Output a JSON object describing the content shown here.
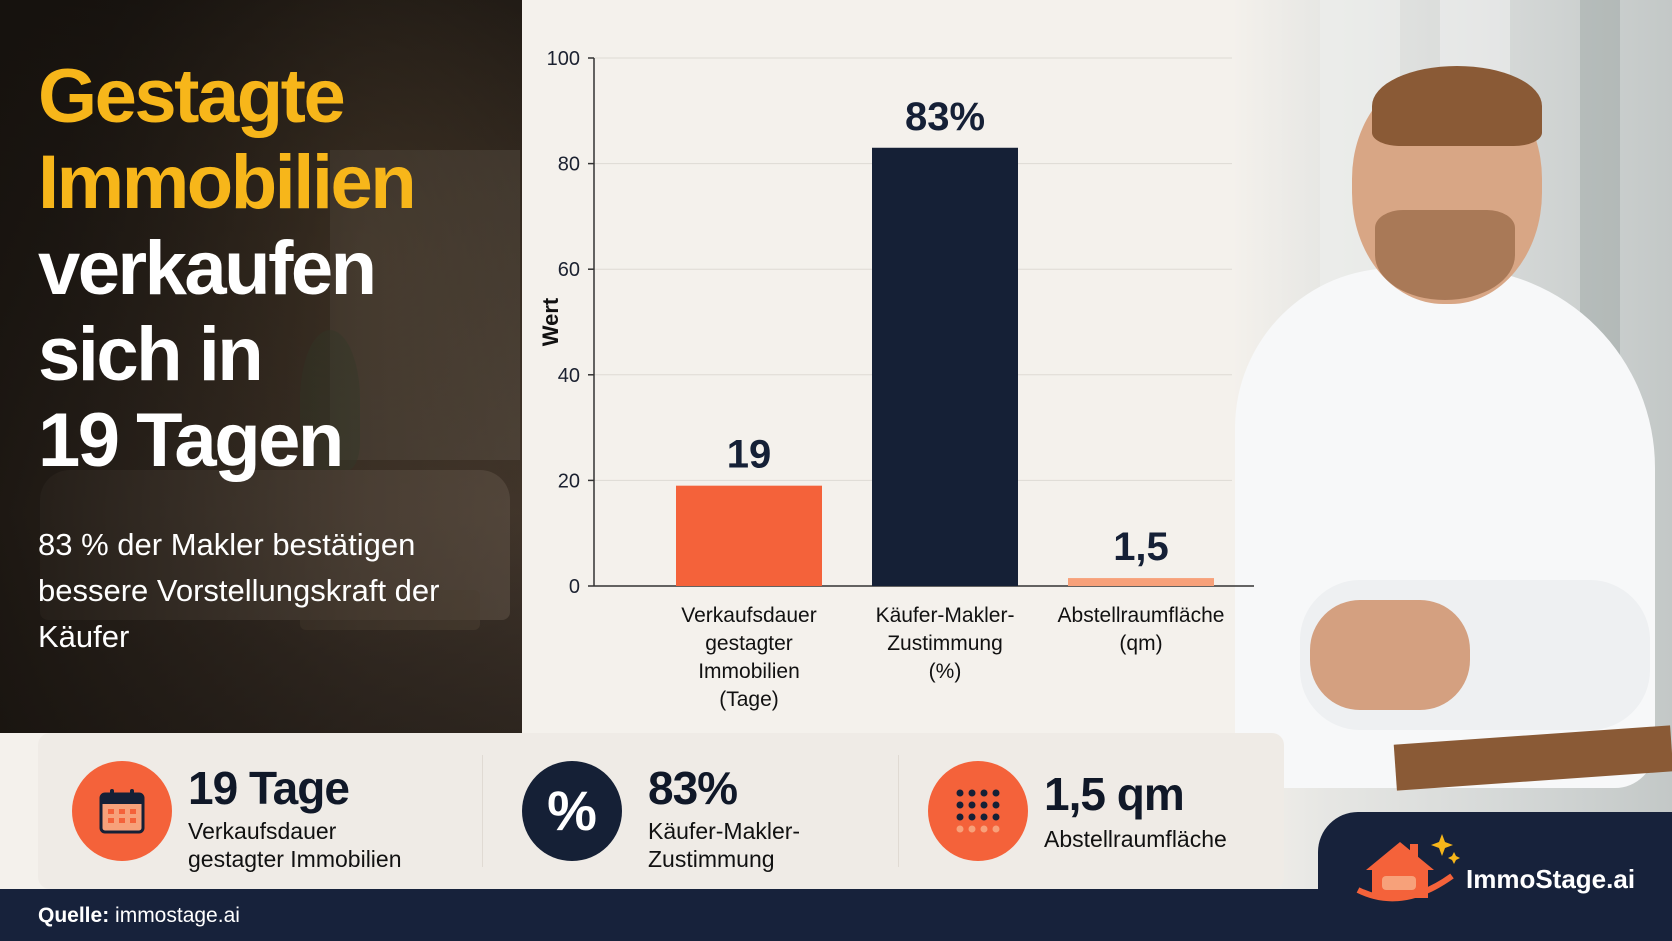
{
  "headline": {
    "line1": "Gestagte",
    "line2": "Immobilien",
    "line3": "verkaufen",
    "line4": "sich in",
    "line5": "19 Tagen"
  },
  "subheadline": "83 % der Makler bestätigen bessere Vorstellungskraft der Käufer",
  "colors": {
    "accent_yellow": "#f7b61a",
    "coral": "#f4623a",
    "navy": "#152036",
    "peach": "#f7a17a"
  },
  "chart_data": {
    "type": "bar",
    "categories": [
      "Verkaufsdauer\ngestagter\nImmobilien\n(Tage)",
      "Käufer-Makler-\nZustimmung\n(%)",
      "Abstellraumfläche\n(qm)"
    ],
    "values": [
      19,
      83,
      1.5
    ],
    "data_labels": [
      "19",
      "83%",
      "1,5"
    ],
    "bar_colors": [
      "#f4623a",
      "#152036",
      "#f7a17a"
    ],
    "ylabel": "Wert",
    "xlabel": "",
    "ylim": [
      0,
      100
    ],
    "yticks": [
      0,
      20,
      40,
      60,
      80,
      100
    ],
    "grid": true
  },
  "stats": [
    {
      "value": "19 Tage",
      "desc": "Verkaufsdauer\ngestagter Immobilien",
      "icon": "calendar-icon"
    },
    {
      "value": "83%",
      "desc": "Käufer-Makler-\nZustimmung",
      "icon": "percent-icon",
      "glyph": "%"
    },
    {
      "value": "1,5 qm",
      "desc": "Abstellraumfläche",
      "icon": "dot-grid-icon"
    }
  ],
  "footer": {
    "source_label": "Quelle:",
    "source_value": "immostage.ai"
  },
  "logo": {
    "part1": "Immo",
    "part2": "Stage.ai"
  }
}
